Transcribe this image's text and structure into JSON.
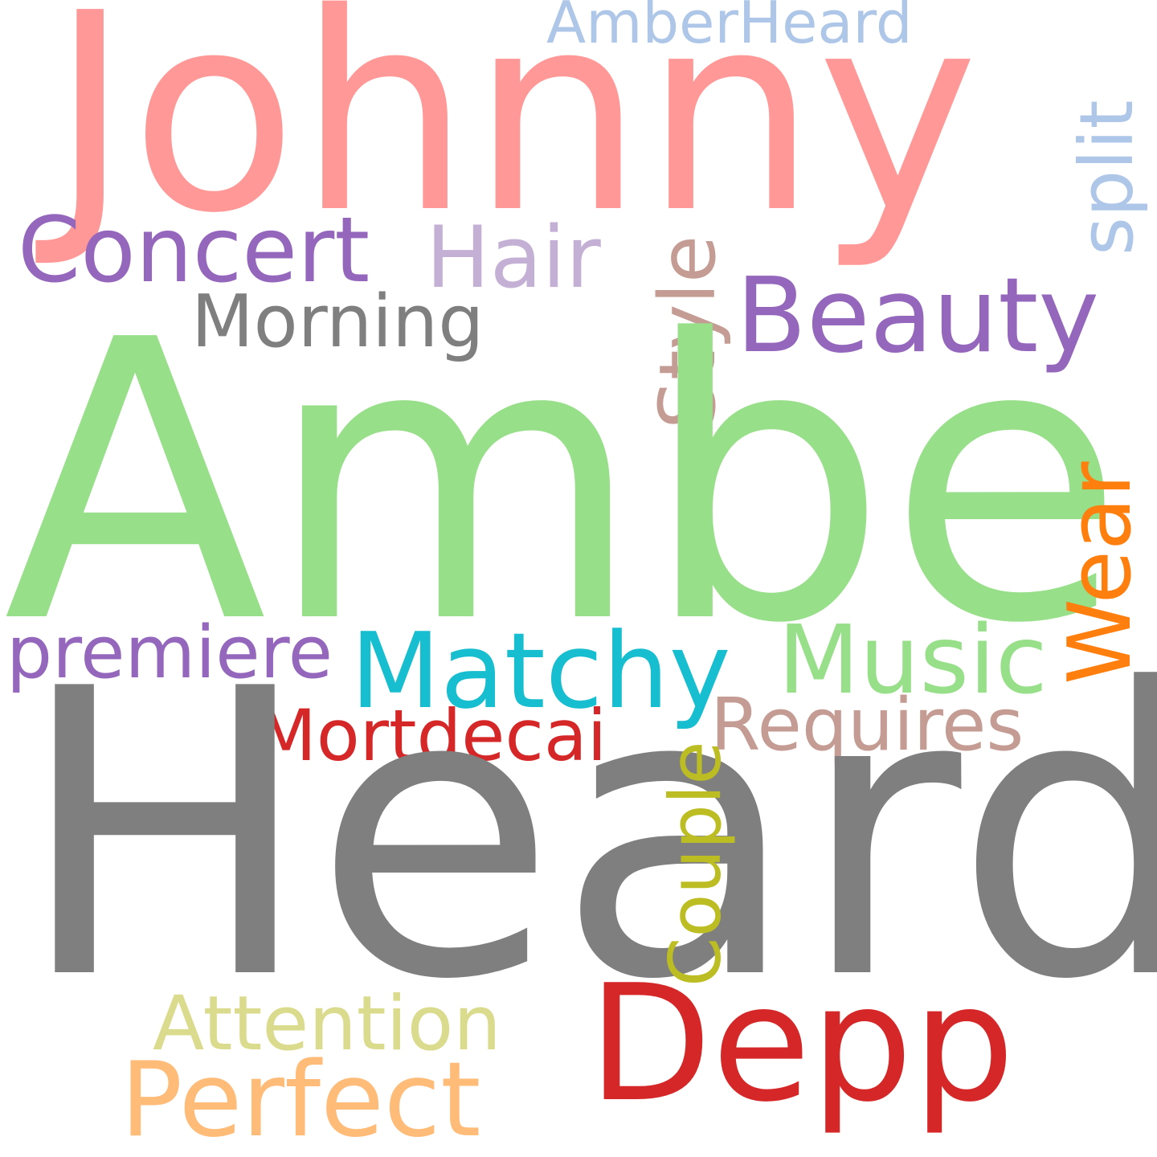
{
  "words": {
    "johnny": {
      "text": "Johnny",
      "color": "#ff9896"
    },
    "amberheard": {
      "text": "AmberHeard",
      "color": "#aec7e8"
    },
    "split": {
      "text": "split",
      "color": "#aec7e8"
    },
    "concert": {
      "text": "Concert",
      "color": "#9467bd"
    },
    "hair": {
      "text": "Hair",
      "color": "#c5b0d5"
    },
    "style": {
      "text": "Style",
      "color": "#c49c94"
    },
    "beauty": {
      "text": "Beauty",
      "color": "#9467bd"
    },
    "morning": {
      "text": "Morning",
      "color": "#7f7f7f"
    },
    "amber": {
      "text": "Amber",
      "color": "#98df8a"
    },
    "wear": {
      "text": "Wear",
      "color": "#ff7f0e"
    },
    "premiere": {
      "text": "premiere",
      "color": "#9467bd"
    },
    "matchy": {
      "text": "Matchy",
      "color": "#17becf"
    },
    "music": {
      "text": "Music",
      "color": "#98df8a"
    },
    "requires": {
      "text": "Requires",
      "color": "#c49c94"
    },
    "mortdecai": {
      "text": "Mortdecai",
      "color": "#d62728"
    },
    "heard": {
      "text": "Heard",
      "color": "#7f7f7f"
    },
    "couple": {
      "text": "Couple",
      "color": "#bcbd22"
    },
    "attention": {
      "text": "Attention",
      "color": "#dbdb8d"
    },
    "depp": {
      "text": "Depp",
      "color": "#d62728"
    },
    "perfect": {
      "text": "Perfect",
      "color": "#ffbb78"
    }
  }
}
